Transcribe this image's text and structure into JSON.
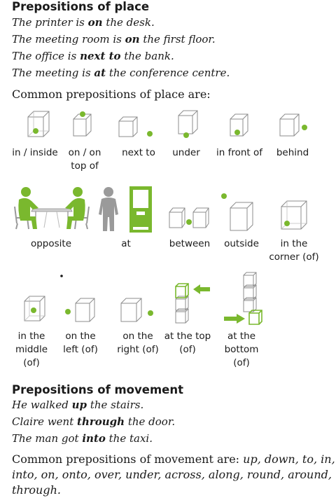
{
  "place": {
    "heading": "Prepositions of place",
    "examples": [
      {
        "a": "The printer is ",
        "p": "on",
        "b": " the desk."
      },
      {
        "a": "The meeting room is ",
        "p": "on",
        "b": " the first floor."
      },
      {
        "a": "The office is ",
        "p": "next to",
        "b": " the bank."
      },
      {
        "a": "The meeting is ",
        "p": "at",
        "b": " the conference centre."
      }
    ],
    "intro": "Common prepositions of place are:",
    "row1": [
      "in / inside",
      "on / on top of",
      "next to",
      "under",
      "in front of",
      "behind"
    ],
    "row2": [
      "opposite",
      "at",
      "between",
      "outside",
      "in the corner (of)"
    ],
    "row3": [
      "in the middle (of)",
      "on the left (of)",
      "on the right (of)",
      "at the top (of)",
      "at the bottom (of)"
    ]
  },
  "movement": {
    "heading": "Prepositions of movement",
    "examples": [
      {
        "a": "He walked ",
        "p": "up",
        "b": " the stairs."
      },
      {
        "a": "Claire went ",
        "p": "through",
        "b": " the door."
      },
      {
        "a": "The man got ",
        "p": "into",
        "b": " the taxi."
      }
    ],
    "intro_a": "Common prepositions of movement are: ",
    "intro_list": "up, down, to, in, into, on, onto, over, under, across, along, round, around, through."
  },
  "colors": {
    "accent": "#7ab82e",
    "cube": "#8c8c8c"
  }
}
